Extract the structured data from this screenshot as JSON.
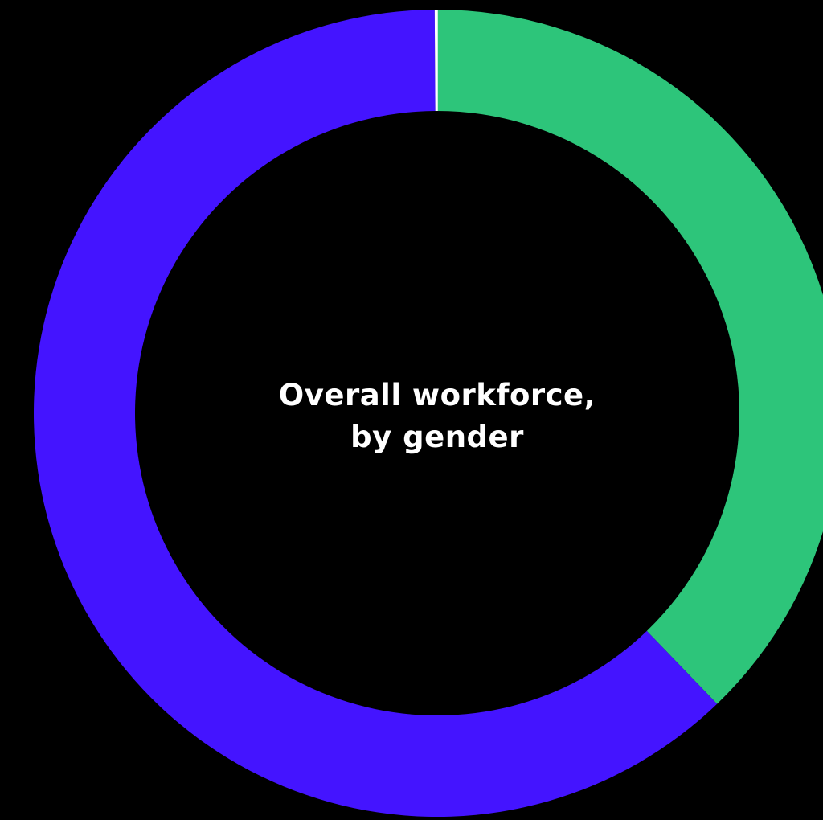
{
  "colors": {
    "background": "#000000",
    "text": "#ffffff",
    "divider": "#ffffff"
  },
  "chart_data": {
    "type": "pie",
    "donut": true,
    "title": "Overall workforce, by gender",
    "title_lines": [
      "Overall workforce,",
      "by gender"
    ],
    "series": [
      {
        "value": 37.8,
        "color": "#2dc57a"
      },
      {
        "value": 62.1,
        "color": "#4414ff"
      },
      {
        "value": 0.1,
        "color": "#ffffff"
      }
    ],
    "start_angle_deg": 0,
    "direction": "clockwise"
  }
}
